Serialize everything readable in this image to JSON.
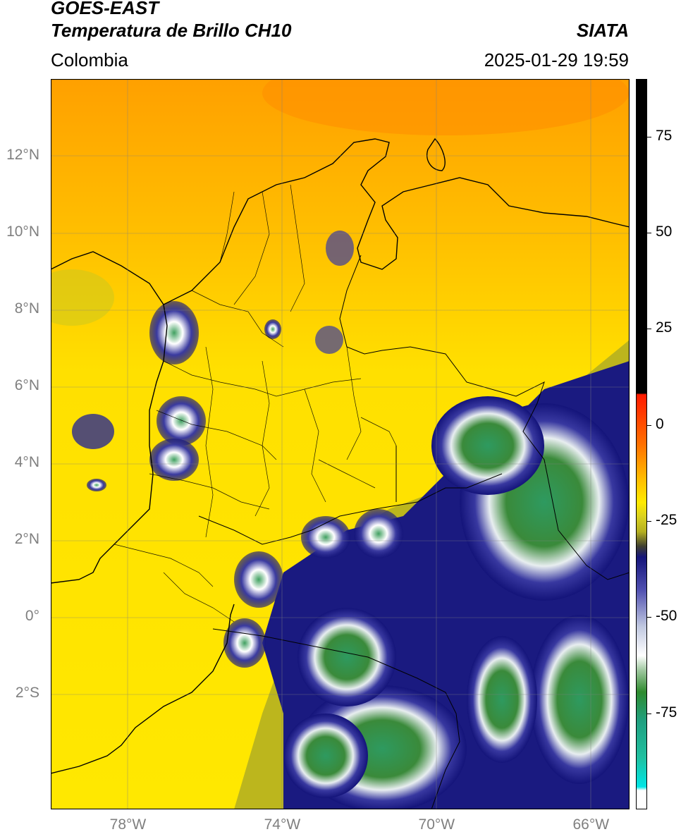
{
  "header": {
    "satellite": "GOES-EAST",
    "product": "Temperatura de Brillo CH10",
    "agency": "SIATA",
    "region": "Colombia",
    "timestamp": "2025-01-29 19:59"
  },
  "map": {
    "lon_range": [
      -80,
      -65
    ],
    "lat_range": [
      -5,
      14
    ],
    "lat_ticks": [
      {
        "value": 12,
        "label": "12°N"
      },
      {
        "value": 10,
        "label": "10°N"
      },
      {
        "value": 8,
        "label": "8°N"
      },
      {
        "value": 6,
        "label": "6°N"
      },
      {
        "value": 4,
        "label": "4°N"
      },
      {
        "value": 2,
        "label": "2°N"
      },
      {
        "value": 0,
        "label": "0°"
      },
      {
        "value": -2,
        "label": "2°S"
      }
    ],
    "lon_ticks": [
      {
        "value": -78,
        "label": "78°W"
      },
      {
        "value": -74,
        "label": "74°W"
      },
      {
        "value": -70,
        "label": "70°W"
      },
      {
        "value": -66,
        "label": "66°W"
      }
    ]
  },
  "colorbar": {
    "range": [
      -100,
      90
    ],
    "ticks": [
      {
        "value": 75,
        "label": "75"
      },
      {
        "value": 50,
        "label": "50"
      },
      {
        "value": 25,
        "label": "25"
      },
      {
        "value": 0,
        "label": "0"
      },
      {
        "value": -25,
        "label": "-25"
      },
      {
        "value": -50,
        "label": "-50"
      },
      {
        "value": -75,
        "label": "-75"
      }
    ],
    "colors": {
      "black": "#000000",
      "red": "#ff1a00",
      "orange": "#ff8c00",
      "yellow": "#ffea00",
      "olive": "#b5b020",
      "navy": "#14147a",
      "white": "#ffffff",
      "green": "#2e8b2e",
      "teal": "#20c0a0",
      "cyan": "#00e5e5"
    }
  }
}
